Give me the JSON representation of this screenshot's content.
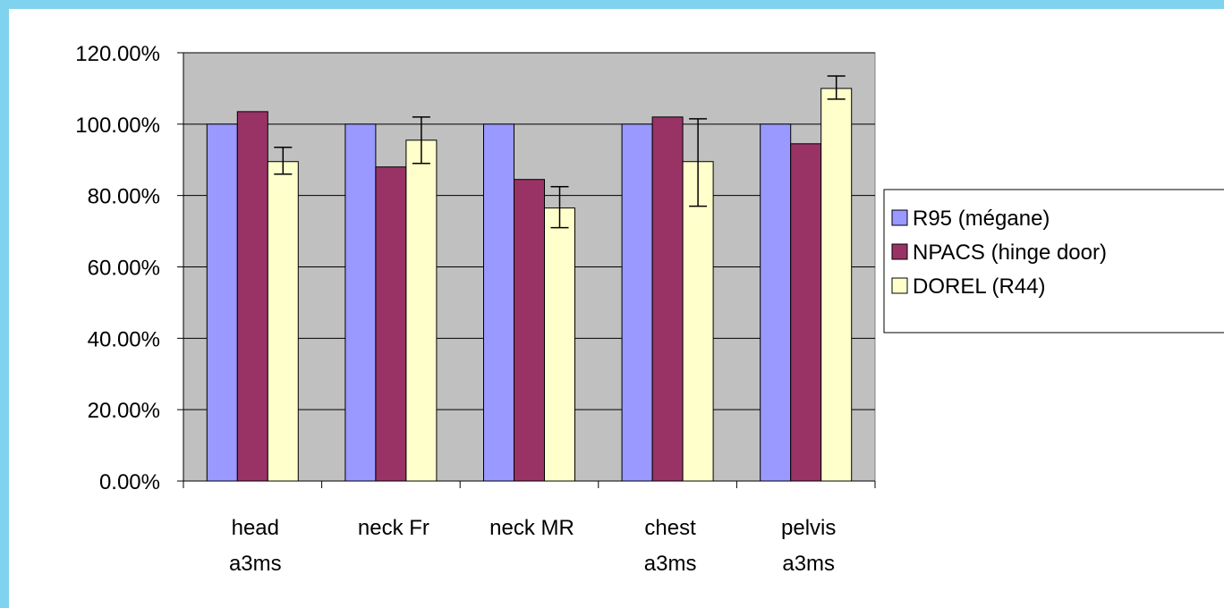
{
  "colors": {
    "background": "#7fd3ee",
    "plot_area": "#c0c0c0"
  },
  "chart_data": {
    "type": "bar",
    "title": "",
    "xlabel": "",
    "ylabel": "",
    "categories": [
      [
        "head",
        "a3ms"
      ],
      [
        "neck Fr"
      ],
      [
        "neck MR"
      ],
      [
        "chest",
        "a3ms"
      ],
      [
        "pelvis",
        "a3ms"
      ]
    ],
    "yticks": [
      "0.00%",
      "20.00%",
      "40.00%",
      "60.00%",
      "80.00%",
      "100.00%",
      "120.00%"
    ],
    "ylim": [
      0,
      120
    ],
    "grid": true,
    "legend_position": "right",
    "series": [
      {
        "name": "R95 (mégane)",
        "color": "#9999ff",
        "values": [
          100,
          100,
          100,
          100,
          100
        ]
      },
      {
        "name": "NPACS (hinge door)",
        "color": "#993366",
        "values": [
          103.5,
          88,
          84.5,
          102,
          94.5
        ]
      },
      {
        "name": "DOREL (R44)",
        "color": "#ffffcc",
        "values": [
          89.5,
          95.5,
          76.5,
          89.5,
          110
        ],
        "error_low": [
          86,
          89,
          71,
          77,
          107
        ],
        "error_high": [
          93.5,
          102,
          82.5,
          101.5,
          113.5
        ]
      }
    ]
  }
}
